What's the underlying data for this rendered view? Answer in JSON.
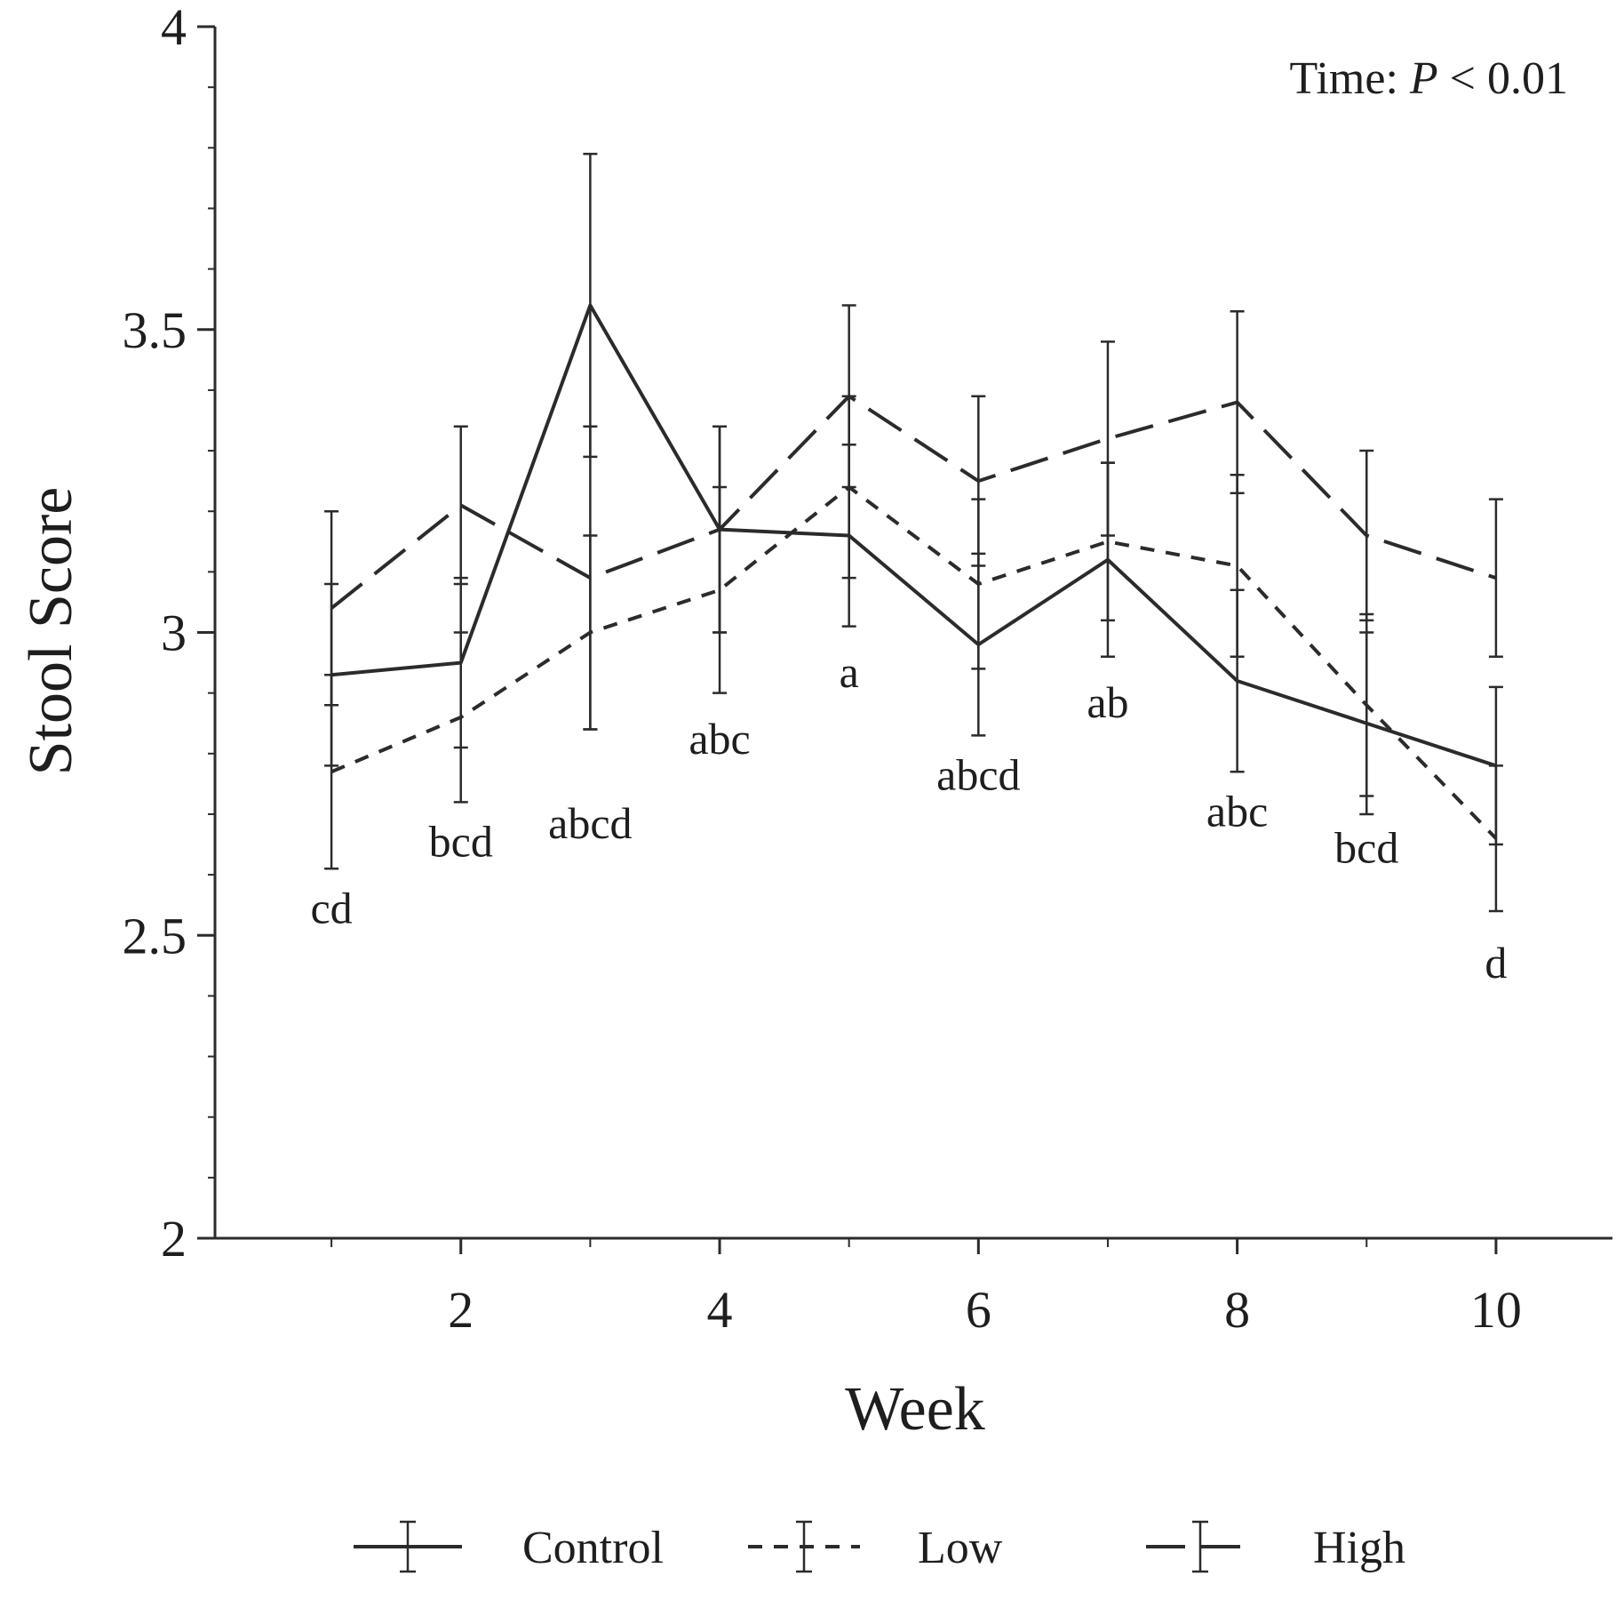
{
  "chart_data": {
    "type": "line",
    "title": "",
    "xlabel": "Week",
    "ylabel": "Stool Score",
    "xlim": [
      0.1,
      10.9
    ],
    "ylim": [
      2,
      4
    ],
    "x_ticks": [
      2,
      4,
      6,
      8,
      10
    ],
    "y_ticks": [
      2,
      2.5,
      3,
      3.5,
      4
    ],
    "y_tick_labels": [
      "2",
      "2.5",
      "3",
      "3.5",
      "4"
    ],
    "y_minor_step": 0.1,
    "x": [
      1,
      2,
      3,
      4,
      5,
      6,
      7,
      8,
      9,
      10
    ],
    "series": [
      {
        "name": "Control",
        "style": "solid",
        "values": [
          2.93,
          2.95,
          3.54,
          3.17,
          3.16,
          2.98,
          3.12,
          2.92,
          2.85,
          2.78
        ],
        "errors": [
          0.15,
          0.14,
          0.25,
          0.17,
          0.15,
          0.15,
          0.16,
          0.15,
          0.15,
          0.13
        ]
      },
      {
        "name": "Low",
        "style": "short-dash",
        "values": [
          2.77,
          2.86,
          3.0,
          3.07,
          3.24,
          3.08,
          3.15,
          3.11,
          2.88,
          2.66
        ],
        "errors": [
          0.16,
          0.14,
          0.16,
          0.17,
          0.15,
          0.14,
          0.13,
          0.15,
          0.15,
          0.12
        ]
      },
      {
        "name": "High",
        "style": "long-dash",
        "values": [
          3.04,
          3.21,
          3.09,
          3.17,
          3.39,
          3.25,
          3.32,
          3.38,
          3.16,
          3.09
        ],
        "errors": [
          0.16,
          0.13,
          0.25,
          0.17,
          0.15,
          0.14,
          0.16,
          0.15,
          0.14,
          0.13
        ]
      }
    ],
    "letter_labels": [
      {
        "x": 1,
        "y": 2.52,
        "text": "cd"
      },
      {
        "x": 2,
        "y": 2.63,
        "text": "bcd"
      },
      {
        "x": 3,
        "y": 2.66,
        "text": "abcd"
      },
      {
        "x": 4,
        "y": 2.8,
        "text": "abc"
      },
      {
        "x": 5,
        "y": 2.91,
        "text": "a"
      },
      {
        "x": 6,
        "y": 2.74,
        "text": "abcd"
      },
      {
        "x": 7,
        "y": 2.86,
        "text": "ab"
      },
      {
        "x": 8,
        "y": 2.68,
        "text": "abc"
      },
      {
        "x": 9,
        "y": 2.62,
        "text": "bcd"
      },
      {
        "x": 10,
        "y": 2.43,
        "text": "d"
      }
    ],
    "annotation": {
      "prefix": "Time: ",
      "italic": "P",
      "suffix": " < 0.01",
      "position": "top-right"
    },
    "legend": {
      "position": "bottom",
      "entries": [
        "Control",
        "Low",
        "High"
      ]
    },
    "grid": false
  }
}
